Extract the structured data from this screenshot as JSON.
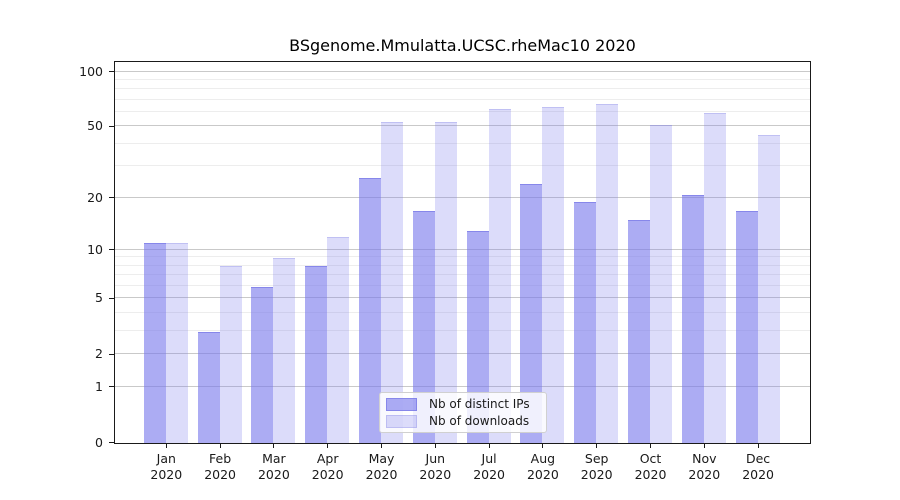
{
  "chart_data": {
    "type": "bar",
    "title": "BSgenome.Mmulatta.UCSC.rheMac10 2020",
    "year_label": "2020",
    "categories": [
      "Jan",
      "Feb",
      "Mar",
      "Apr",
      "May",
      "Jun",
      "Jul",
      "Aug",
      "Sep",
      "Oct",
      "Nov",
      "Dec"
    ],
    "series": [
      {
        "name": "Nb of distinct IPs",
        "values": [
          11,
          3,
          6,
          8,
          26,
          17,
          13,
          24,
          19,
          15,
          21,
          17
        ],
        "color": "rgba(121,121,236,0.62)",
        "edge_color": "rgba(106,106,225,0.55)"
      },
      {
        "name": "Nb of downloads",
        "values": [
          11,
          8,
          9,
          12,
          53,
          53,
          63,
          64,
          67,
          51,
          60,
          45
        ],
        "color": "rgba(121,121,236,0.26)",
        "edge_color": "rgba(140,140,230,0.35)"
      }
    ],
    "yscale": "log1p",
    "ylim": [
      0,
      100
    ],
    "ytick_labels": [
      0,
      1,
      2,
      5,
      10,
      20,
      50,
      100
    ],
    "major_gridlines": [
      1,
      2,
      5,
      10,
      20,
      50,
      100
    ],
    "minor_gridlines": [
      3,
      4,
      6,
      7,
      8,
      9,
      30,
      40,
      60,
      70,
      80,
      90
    ],
    "grid": "on",
    "legend_position": "bottom-center",
    "colors": {
      "major_grid": "#c9c9c9",
      "minor_grid": "#ededed",
      "axis": "#1a1a1a",
      "text": "#1a1a1a",
      "background": "#ffffff"
    }
  }
}
